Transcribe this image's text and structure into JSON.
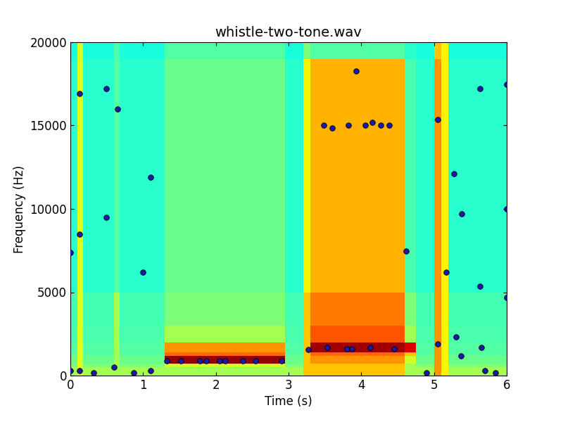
{
  "chart_data": {
    "type": "spectrogram",
    "title": "whistle-two-tone.wav",
    "x_label": "Time (s)",
    "y_label": "Frequency (Hz)",
    "xlim": [
      0,
      6
    ],
    "ylim": [
      0,
      20000
    ],
    "xticks": [
      0,
      1,
      2,
      3,
      4,
      5,
      6
    ],
    "yticks": [
      0,
      5000,
      10000,
      15000,
      20000
    ],
    "time_edges": [
      0,
      0.1,
      0.17,
      0.6,
      0.68,
      1.3,
      2.95,
      3.2,
      3.3,
      4.6,
      4.75,
      5.0,
      5.1,
      5.2,
      5.3,
      6.0
    ],
    "frequency_edges": [
      0,
      500,
      700,
      1200,
      1400,
      2000,
      3000,
      5000,
      19000,
      20000
    ],
    "cell_range": [
      0,
      100
    ],
    "cells": [
      [
        55,
        62,
        55,
        55,
        55,
        55,
        55,
        70,
        70,
        55,
        55,
        75,
        65,
        55,
        55
      ],
      [
        50,
        62,
        50,
        55,
        50,
        60,
        50,
        70,
        70,
        55,
        50,
        75,
        65,
        50,
        50
      ],
      [
        48,
        62,
        48,
        55,
        48,
        98,
        48,
        70,
        75,
        60,
        48,
        75,
        65,
        48,
        48
      ],
      [
        46,
        62,
        46,
        55,
        46,
        80,
        46,
        70,
        80,
        70,
        46,
        75,
        65,
        46,
        46
      ],
      [
        45,
        62,
        45,
        55,
        45,
        75,
        45,
        70,
        97,
        92,
        45,
        75,
        65,
        45,
        45
      ],
      [
        44,
        62,
        44,
        55,
        44,
        55,
        44,
        70,
        82,
        55,
        44,
        75,
        65,
        44,
        44
      ],
      [
        43,
        62,
        43,
        55,
        43,
        50,
        43,
        70,
        78,
        50,
        43,
        75,
        65,
        43,
        43
      ],
      [
        40,
        62,
        40,
        45,
        40,
        48,
        40,
        65,
        72,
        44,
        40,
        75,
        65,
        40,
        40
      ],
      [
        38,
        62,
        38,
        45,
        38,
        45,
        38,
        50,
        45,
        40,
        38,
        70,
        65,
        38,
        38
      ]
    ],
    "points": {
      "color": "#1a1aa8",
      "marker": "circle",
      "x": [
        0,
        0,
        0.13,
        0.13,
        0.13,
        0.32,
        0.49,
        0.49,
        0.6,
        0.65,
        0.87,
        1.0,
        1.1,
        1.1,
        1.33,
        1.52,
        1.78,
        1.87,
        2.05,
        2.13,
        2.37,
        2.55,
        2.9,
        3.27,
        3.48,
        3.53,
        3.6,
        3.8,
        3.82,
        3.87,
        3.93,
        4.05,
        4.12,
        4.15,
        4.27,
        4.38,
        4.45,
        4.62,
        4.9,
        5.05,
        5.05,
        5.17,
        5.27,
        5.3,
        5.37,
        5.38,
        5.63,
        5.63,
        5.65,
        5.7,
        5.85,
        6.0,
        6.0,
        6.0
      ],
      "y": [
        300,
        7400,
        300,
        8500,
        16900,
        150,
        17200,
        9500,
        500,
        16000,
        150,
        6200,
        300,
        11900,
        900,
        900,
        900,
        900,
        900,
        900,
        900,
        900,
        900,
        1550,
        15000,
        1700,
        14850,
        1600,
        15000,
        1600,
        18250,
        15000,
        1700,
        15200,
        15000,
        15000,
        1600,
        7450,
        150,
        1900,
        15350,
        6200,
        12100,
        2300,
        1200,
        9700,
        17200,
        5350,
        1700,
        300,
        150,
        17450,
        10000,
        4700
      ]
    }
  }
}
